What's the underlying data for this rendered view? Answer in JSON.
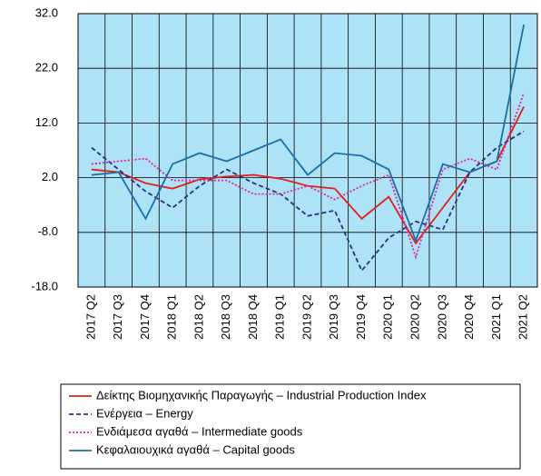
{
  "chart_data": {
    "type": "line",
    "categories": [
      "2017 Q2",
      "2017 Q3",
      "2017 Q4",
      "2018 Q1",
      "2018 Q2",
      "2018 Q3",
      "2018 Q4",
      "2019 Q1",
      "2019 Q2",
      "2019 Q3",
      "2019 Q4",
      "2020 Q1",
      "2020 Q2",
      "2020 Q3",
      "2020 Q4",
      "2021 Q1",
      "2021 Q2"
    ],
    "ylim": [
      -18,
      32
    ],
    "yticks": [
      {
        "value": -18,
        "label": "-18.0"
      },
      {
        "value": -8,
        "label": "-8.0"
      },
      {
        "value": 2,
        "label": "2.0"
      },
      {
        "value": 12,
        "label": "12.0"
      },
      {
        "value": 22,
        "label": "22.0"
      },
      {
        "value": 32,
        "label": "32.0"
      }
    ],
    "grid": true,
    "background": "#aee3f7",
    "series": [
      {
        "name": "Δείκτης Βιομηχανικής Παραγωγής – Industrial Production Index",
        "color": "#e0201b",
        "dash": "solid",
        "values": [
          3.5,
          3.0,
          1.0,
          0.0,
          1.7,
          2.2,
          2.5,
          1.8,
          0.5,
          0.0,
          -5.5,
          -1.5,
          -10.0,
          -3.5,
          3.0,
          5.0,
          15.0
        ]
      },
      {
        "name": "Ενέργεια – Energy",
        "color": "#2b2f7e",
        "dash": "dashed",
        "values": [
          7.5,
          3.5,
          -0.5,
          -3.5,
          0.5,
          3.5,
          1.0,
          -1.0,
          -5.0,
          -4.0,
          -15.0,
          -9.0,
          -6.0,
          -7.5,
          3.0,
          7.5,
          10.5
        ]
      },
      {
        "name": "Ενδιάμεσα αγαθά – Intermediate goods",
        "color": "#e0249a",
        "dash": "dotted",
        "values": [
          4.5,
          5.0,
          5.5,
          1.5,
          1.5,
          1.5,
          -1.0,
          -1.0,
          0.5,
          -2.0,
          0.5,
          2.5,
          -12.5,
          3.5,
          5.5,
          3.5,
          17.5
        ]
      },
      {
        "name": "Κεφαλαιουχικά αγαθά – Capital goods",
        "color": "#1a6fa6",
        "dash": "solid",
        "values": [
          2.5,
          3.0,
          -5.5,
          4.5,
          6.5,
          5.0,
          7.0,
          9.0,
          2.5,
          6.5,
          6.0,
          3.5,
          -9.5,
          4.5,
          3.0,
          5.0,
          30.0
        ]
      }
    ]
  }
}
